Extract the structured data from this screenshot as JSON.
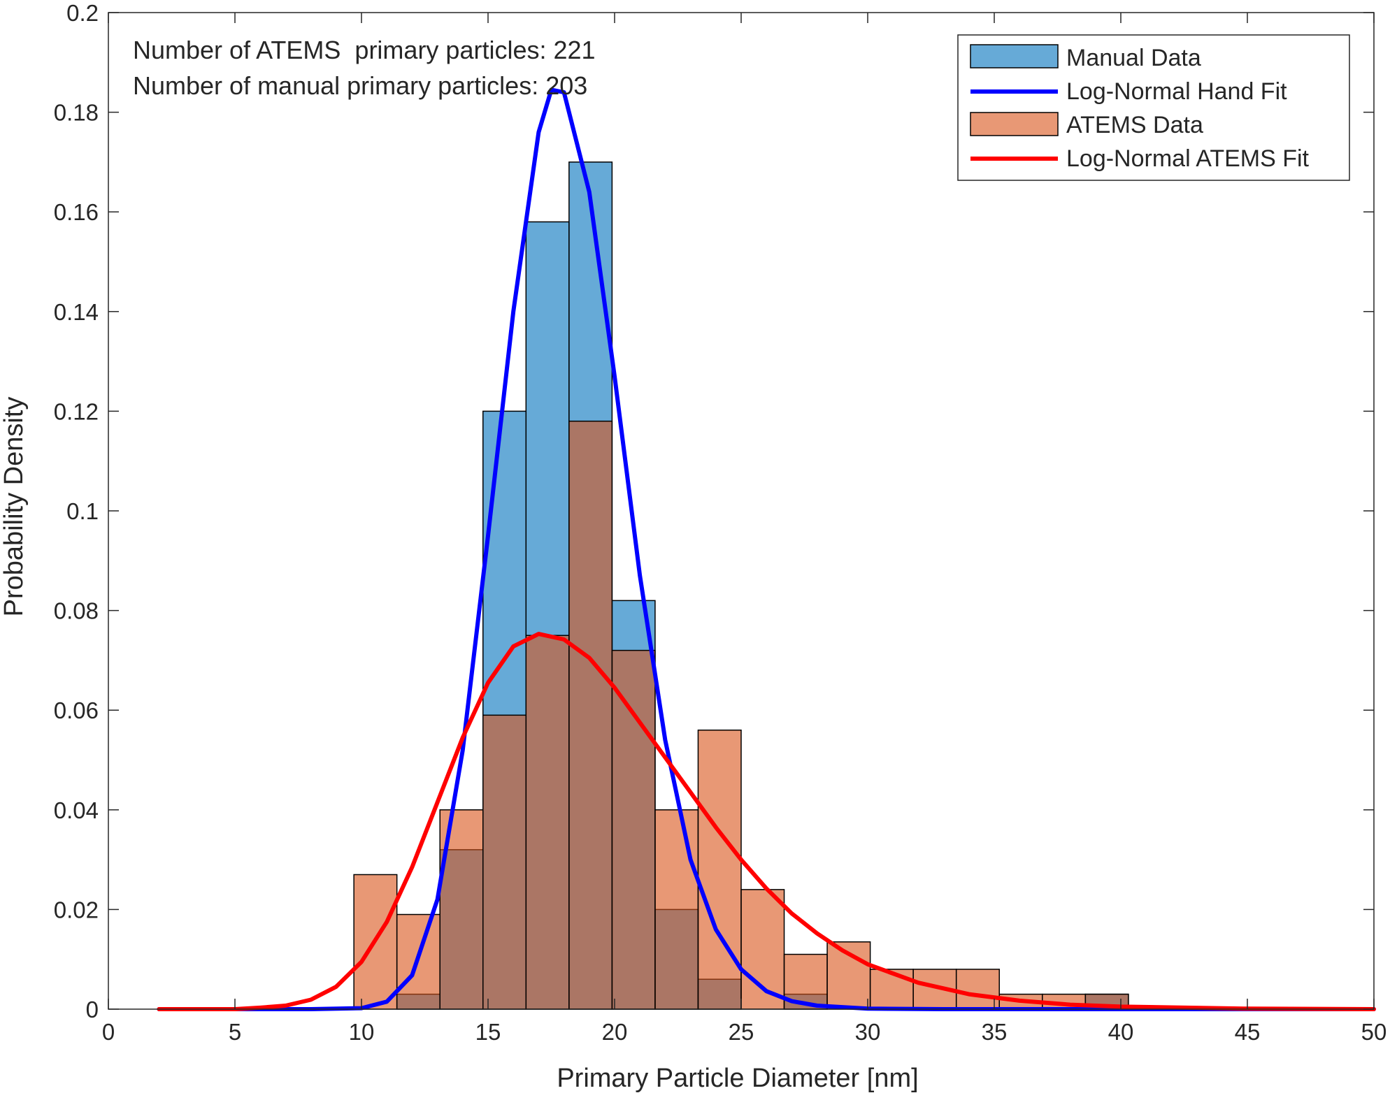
{
  "chart_data": {
    "type": "bar",
    "xlabel": "Primary Particle Diameter [nm]",
    "ylabel": "Probability Density",
    "xlim": [
      0,
      50
    ],
    "ylim": [
      0,
      0.2
    ],
    "xticks": [
      0,
      5,
      10,
      15,
      20,
      25,
      30,
      35,
      40,
      45,
      50
    ],
    "yticks": [
      0,
      0.02,
      0.04,
      0.06,
      0.08,
      0.1,
      0.12,
      0.14,
      0.16,
      0.18,
      0.2
    ],
    "ytick_labels": [
      "0",
      "0.02",
      "0.04",
      "0.06",
      "0.08",
      "0.1",
      "0.12",
      "0.14",
      "0.16",
      "0.18",
      "0.2"
    ],
    "grid": false,
    "legend_position": "top-right",
    "annotations": [
      "Number of ATEMS  primary particles: 221",
      "Number of manual primary particles: 203"
    ],
    "histograms": [
      {
        "name": "Manual Data",
        "color": "#0072BD",
        "opacity": 0.6,
        "bin_edges": [
          9.7,
          11.4,
          13.1,
          14.8,
          16.5,
          18.2,
          19.9,
          21.6,
          23.3,
          25.0,
          26.7,
          28.4,
          30.1,
          31.8,
          33.5,
          35.2,
          36.9,
          38.6,
          40.3
        ],
        "values": [
          0,
          0.003,
          0.032,
          0.12,
          0.158,
          0.17,
          0.082,
          0.02,
          0.006,
          0,
          0.003,
          0,
          0,
          0,
          0,
          0,
          0,
          0.003
        ]
      },
      {
        "name": "ATEMS Data",
        "color": "#D95319",
        "opacity": 0.6,
        "bin_edges": [
          9.7,
          11.4,
          13.1,
          14.8,
          16.5,
          18.2,
          19.9,
          21.6,
          23.3,
          25.0,
          26.7,
          28.4,
          30.1,
          31.8,
          33.5,
          35.2,
          36.9,
          38.6,
          40.3
        ],
        "values": [
          0.027,
          0.019,
          0.04,
          0.059,
          0.075,
          0.118,
          0.072,
          0.04,
          0.056,
          0.024,
          0.011,
          0.0135,
          0.008,
          0.008,
          0.008,
          0.003,
          0.003,
          0.003
        ]
      }
    ],
    "series": [
      {
        "name": "Log-Normal Hand Fit",
        "color": "#0000FF",
        "x": [
          2,
          6,
          8,
          10,
          11,
          12,
          13,
          14,
          15,
          16,
          17,
          17.5,
          18,
          19,
          20,
          21,
          22,
          23,
          24,
          25,
          26,
          27,
          28,
          30,
          33,
          40,
          50
        ],
        "y": [
          0,
          0,
          0,
          0.0002,
          0.0015,
          0.0068,
          0.022,
          0.052,
          0.095,
          0.14,
          0.176,
          0.1845,
          0.184,
          0.164,
          0.127,
          0.087,
          0.054,
          0.03,
          0.016,
          0.008,
          0.0036,
          0.0016,
          0.0007,
          0.0001,
          0,
          0,
          0
        ]
      },
      {
        "name": "Log-Normal ATEMS Fit",
        "color": "#FF0000",
        "x": [
          2,
          5,
          6,
          7,
          8,
          9,
          10,
          11,
          12,
          13,
          14,
          15,
          16,
          17,
          18,
          19,
          20,
          21,
          22,
          23,
          24,
          25,
          26,
          27,
          28,
          29,
          30,
          32,
          34,
          36,
          38,
          40,
          45,
          50
        ],
        "y": [
          0,
          0,
          0.0003,
          0.0007,
          0.0019,
          0.0045,
          0.0095,
          0.0175,
          0.0285,
          0.0415,
          0.0545,
          0.0655,
          0.0728,
          0.0753,
          0.0742,
          0.0705,
          0.0645,
          0.0575,
          0.0505,
          0.0435,
          0.0365,
          0.03,
          0.0242,
          0.0192,
          0.0152,
          0.0118,
          0.009,
          0.0053,
          0.003,
          0.0017,
          0.0009,
          0.0005,
          0.0001,
          0
        ]
      }
    ],
    "legend": [
      {
        "label": "Manual Data",
        "kind": "patch",
        "color": "#0072BD"
      },
      {
        "label": "Log-Normal Hand Fit",
        "kind": "line",
        "color": "#0000FF"
      },
      {
        "label": "ATEMS Data",
        "kind": "patch",
        "color": "#D95319"
      },
      {
        "label": "Log-Normal ATEMS Fit",
        "kind": "line",
        "color": "#FF0000"
      }
    ]
  }
}
